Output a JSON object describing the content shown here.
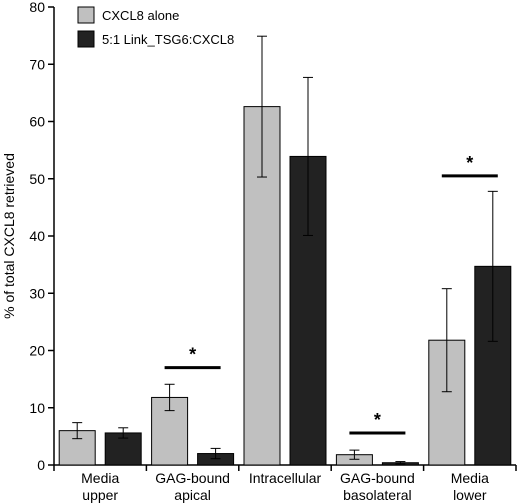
{
  "chart_data": {
    "type": "bar",
    "ylabel": "% of total CXCL8 retrieved",
    "ylim": [
      0,
      80
    ],
    "yticks": [
      0,
      10,
      20,
      30,
      40,
      50,
      60,
      70,
      80
    ],
    "categories": [
      [
        "Media",
        "upper"
      ],
      [
        "GAG-bound",
        "apical"
      ],
      [
        "Intracellular"
      ],
      [
        "GAG-bound",
        "basolateral"
      ],
      [
        "Media",
        "lower"
      ]
    ],
    "series": [
      {
        "name": "CXCL8 alone",
        "color": "#c0c0c0",
        "values": [
          6.0,
          11.8,
          62.6,
          1.8,
          21.8
        ],
        "errors": [
          1.4,
          2.3,
          12.3,
          0.8,
          9.0
        ]
      },
      {
        "name": "5:1 Link_TSG6:CXCL8",
        "color": "#222222",
        "values": [
          5.6,
          2.0,
          53.9,
          0.4,
          34.7
        ],
        "errors": [
          0.9,
          0.9,
          13.8,
          0.2,
          13.1
        ]
      }
    ],
    "significance": [
      {
        "category_index": 1,
        "label": "*",
        "y": 17.0
      },
      {
        "category_index": 3,
        "label": "*",
        "y": 5.6
      },
      {
        "category_index": 4,
        "label": "*",
        "y": 50.5
      }
    ],
    "legend_position": "top-left",
    "grid": false
  }
}
